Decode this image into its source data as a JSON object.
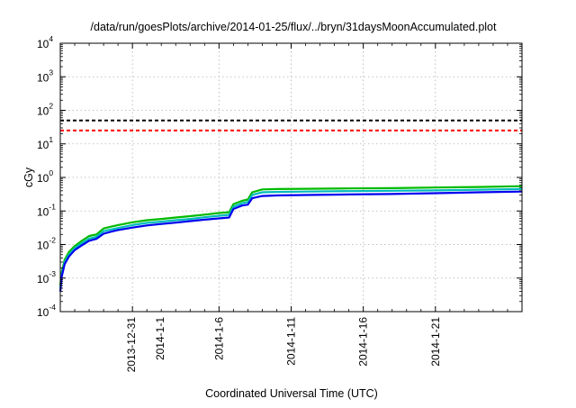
{
  "chart_data": {
    "type": "line",
    "title": "/data/run/goesPlots/archive/2014-01-25/flux/../bryn/31daysMoonAccumulated.plot",
    "xlabel": "Coordinated Universal Time (UTC)",
    "ylabel": "cGy",
    "yscale": "log",
    "ylim": [
      0.0001,
      10000
    ],
    "xlim": [
      "2013-12-26",
      "2014-01-27"
    ],
    "grid": true,
    "x_ticks": [
      "2013-12-31",
      "2014-1-1",
      "2014-1-6",
      "2014-1-11",
      "2014-1-16",
      "2014-1-21"
    ],
    "y_ticks": [
      {
        "base": "10",
        "exp": "-4",
        "value": 0.0001
      },
      {
        "base": "10",
        "exp": "-3",
        "value": 0.001
      },
      {
        "base": "10",
        "exp": "-2",
        "value": 0.01
      },
      {
        "base": "10",
        "exp": "-1",
        "value": 0.1
      },
      {
        "base": "10",
        "exp": "0",
        "value": 1
      },
      {
        "base": "10",
        "exp": "1",
        "value": 10
      },
      {
        "base": "10",
        "exp": "2",
        "value": 100
      },
      {
        "base": "10",
        "exp": "3",
        "value": 1000
      },
      {
        "base": "10",
        "exp": "4",
        "value": 10000
      }
    ],
    "thresholds": [
      {
        "value": 50,
        "color": "#000000",
        "style": "dashed"
      },
      {
        "value": 25,
        "color": "#ff0000",
        "style": "dashed"
      }
    ],
    "x": [
      "2013-12-26",
      "2013-12-26.1",
      "2013-12-26.3",
      "2013-12-26.6",
      "2013-12-27",
      "2013-12-27.5",
      "2013-12-28",
      "2013-12-28.5",
      "2013-12-29",
      "2013-12-29.5",
      "2013-12-30",
      "2013-12-31",
      "2014-01-01",
      "2014-01-02",
      "2014-01-03",
      "2014-01-04",
      "2014-01-05",
      "2014-01-06",
      "2014-01-06.7",
      "2014-01-07",
      "2014-01-07.6",
      "2014-01-08",
      "2014-01-08.3",
      "2014-01-09",
      "2014-01-10",
      "2014-01-12",
      "2014-01-15",
      "2014-01-18",
      "2014-01-21",
      "2014-01-24",
      "2014-01-27"
    ],
    "series": [
      {
        "color": "#00bb00",
        "values": [
          0.0006,
          0.0015,
          0.0035,
          0.006,
          0.009,
          0.013,
          0.018,
          0.02,
          0.03,
          0.034,
          0.038,
          0.046,
          0.053,
          0.058,
          0.064,
          0.07,
          0.078,
          0.087,
          0.092,
          0.16,
          0.2,
          0.22,
          0.36,
          0.44,
          0.45,
          0.46,
          0.47,
          0.48,
          0.5,
          0.52,
          0.55
        ]
      },
      {
        "color": "#00bbbb",
        "values": [
          0.0005,
          0.0013,
          0.003,
          0.005,
          0.0078,
          0.011,
          0.015,
          0.017,
          0.025,
          0.028,
          0.031,
          0.038,
          0.044,
          0.048,
          0.053,
          0.058,
          0.065,
          0.072,
          0.077,
          0.135,
          0.17,
          0.185,
          0.3,
          0.36,
          0.37,
          0.38,
          0.39,
          0.4,
          0.41,
          0.43,
          0.45
        ]
      },
      {
        "color": "#0000ee",
        "values": [
          0.0004,
          0.0011,
          0.0026,
          0.0044,
          0.0068,
          0.0095,
          0.013,
          0.0148,
          0.021,
          0.024,
          0.027,
          0.032,
          0.037,
          0.041,
          0.045,
          0.05,
          0.055,
          0.06,
          0.064,
          0.115,
          0.145,
          0.155,
          0.24,
          0.28,
          0.29,
          0.3,
          0.31,
          0.32,
          0.34,
          0.36,
          0.38
        ]
      }
    ]
  }
}
